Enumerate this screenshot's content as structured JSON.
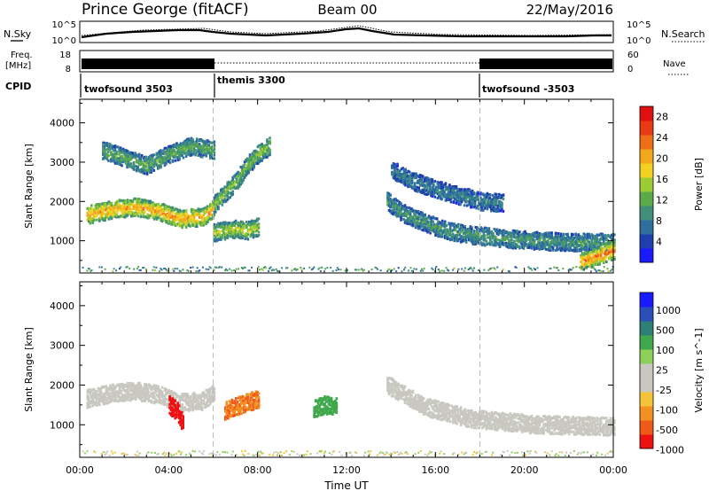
{
  "header": {
    "station": "Prince George (fitACF)",
    "beam": "Beam 00",
    "date": "22/May/2016"
  },
  "left_labels": {
    "nsky": "N.Sky",
    "freq_line1": "Freq.",
    "freq_line2": "[MHz]",
    "cpid": "CPID"
  },
  "right_labels": {
    "nsearch": "N.Search",
    "nave": "Nave"
  },
  "noise_panel": {
    "left_ticks": [
      "10^5",
      "10^0"
    ],
    "right_ticks": [
      "10^5",
      "10^0"
    ]
  },
  "freq_panel": {
    "left_ticks": [
      "18",
      "8"
    ],
    "right_ticks": [
      "60",
      "0"
    ]
  },
  "cpid_blocks": [
    {
      "label": "twofsound 3503",
      "start_hour": 0
    },
    {
      "label": "themis 3300",
      "start_hour": 6
    },
    {
      "label": "twofsound -3503",
      "start_hour": 18
    }
  ],
  "colors": {
    "power_scale": [
      "#1a1aff",
      "#1f3fb0",
      "#2e6f9e",
      "#3f8f7a",
      "#5aaa4a",
      "#9ccc35",
      "#f0d020",
      "#f2a81a",
      "#ef6f18",
      "#e83a14",
      "#e01010"
    ],
    "velocity_scale": [
      "#ee1111",
      "#f05a18",
      "#f29020",
      "#f5c33a",
      "#c8c8c0",
      "#c8c8c0",
      "#8fd05a",
      "#3fa84a",
      "#2e7f74",
      "#2a4fb8",
      "#1a1aff"
    ]
  },
  "chart_data": [
    {
      "type": "heatmap",
      "title": "",
      "xlabel": "",
      "ylabel": "Slant Range [km]",
      "x_ticks": [
        "00:00",
        "04:00",
        "08:00",
        "12:00",
        "16:00",
        "20:00",
        "00:00"
      ],
      "y_ticks": [
        1000,
        2000,
        3000,
        4000
      ],
      "xlim": [
        0,
        24
      ],
      "ylim": [
        180,
        4600
      ],
      "colorbar_label": "Power [dB]",
      "colorbar_ticks": [
        4,
        8,
        12,
        16,
        20,
        24,
        28
      ],
      "colorbar_range": [
        0,
        30
      ],
      "series": [
        {
          "x": [
            0.3,
            1.5,
            2.5,
            3.5,
            4.5,
            5.5,
            6.0
          ],
          "y": [
            1650,
            1800,
            1850,
            1750,
            1550,
            1600,
            1800
          ],
          "value": 22
        },
        {
          "x": [
            6.0,
            6.5,
            7.0,
            7.5,
            8.0,
            8.5
          ],
          "y": [
            1900,
            2200,
            2500,
            2900,
            3200,
            3400
          ],
          "value": 14
        },
        {
          "x": [
            1.0,
            2.0,
            3.0,
            4.0,
            5.0,
            6.0
          ],
          "y": [
            3300,
            3100,
            2900,
            3200,
            3400,
            3300
          ],
          "value": 12
        },
        {
          "x": [
            6.0,
            6.5,
            7.0,
            7.5,
            8.0
          ],
          "y": [
            1200,
            1250,
            1300,
            1250,
            1350
          ],
          "value": 16
        },
        {
          "x": [
            13.8,
            14.5,
            15.5,
            16.5,
            17.5,
            19,
            20.5,
            22,
            24
          ],
          "y": [
            2000,
            1700,
            1450,
            1250,
            1150,
            1050,
            1000,
            950,
            950
          ],
          "value": 10
        },
        {
          "x": [
            14.0,
            15.0,
            16.0,
            17.0,
            18.0,
            19.0
          ],
          "y": [
            2800,
            2500,
            2300,
            2150,
            2000,
            1950
          ],
          "value": 8
        },
        {
          "x": [
            22.5,
            23.0,
            23.5,
            24.0
          ],
          "y": [
            450,
            550,
            650,
            750
          ],
          "value": 24
        }
      ]
    },
    {
      "type": "heatmap",
      "title": "",
      "xlabel": "Time UT",
      "ylabel": "Slant Range [km]",
      "x_ticks": [
        "00:00",
        "04:00",
        "08:00",
        "12:00",
        "16:00",
        "20:00",
        "00:00"
      ],
      "y_ticks": [
        1000,
        2000,
        3000,
        4000
      ],
      "xlim": [
        0,
        24
      ],
      "ylim": [
        180,
        4600
      ],
      "colorbar_label": "Velocity [m s^-1]",
      "colorbar_ticks": [
        -1000,
        -500,
        -100,
        -25,
        25,
        100,
        500,
        1000
      ],
      "series": [
        {
          "x": [
            0.3,
            1.5,
            2.5,
            3.5,
            4.5,
            5.5,
            6.0
          ],
          "y": [
            1650,
            1800,
            1850,
            1750,
            1550,
            1600,
            1800
          ],
          "value": 0
        },
        {
          "x": [
            4.0,
            4.2,
            4.4,
            4.6
          ],
          "y": [
            1500,
            1400,
            1300,
            1000
          ],
          "value": -1000
        },
        {
          "x": [
            6.5,
            7.0,
            7.5,
            8.0
          ],
          "y": [
            1350,
            1450,
            1550,
            1650
          ],
          "value": -300
        },
        {
          "x": [
            13.8,
            15.5,
            17.5,
            20.5,
            24
          ],
          "y": [
            2000,
            1450,
            1150,
            1000,
            950
          ],
          "value": 0
        },
        {
          "x": [
            10.5,
            11.0,
            11.5
          ],
          "y": [
            1400,
            1500,
            1450
          ],
          "value": 200
        }
      ]
    }
  ]
}
